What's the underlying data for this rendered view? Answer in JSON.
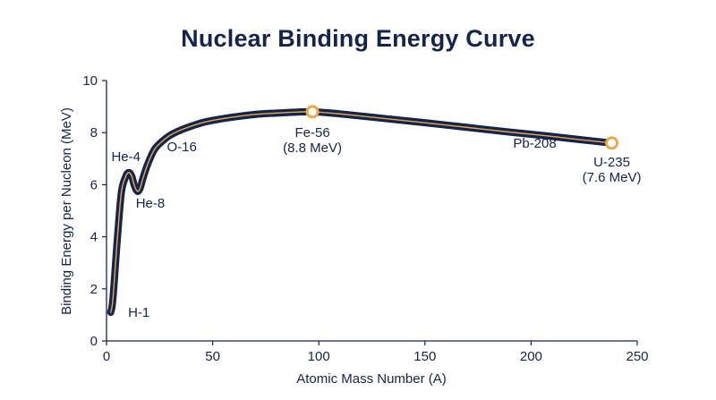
{
  "chart_data": {
    "type": "line",
    "title": "Nuclear Binding Energy Curve",
    "xlabel": "Atomic Mass Number (A)",
    "ylabel": "Binding Energy per Nucleon (MeV)",
    "xlim": [
      0,
      250
    ],
    "ylim": [
      0,
      10
    ],
    "xticks": [
      0,
      50,
      100,
      150,
      200,
      250
    ],
    "yticks": [
      0,
      2,
      4,
      6,
      8,
      10
    ],
    "grid": false,
    "colors": {
      "line": "#14244a",
      "line_highlight": "#e8a84a",
      "marker": "#e8a84a",
      "text": "#14244a"
    },
    "series": [
      {
        "x": [
          2,
          3,
          5,
          7,
          9,
          10,
          11,
          12,
          13,
          14,
          15,
          16,
          17,
          19,
          21,
          23,
          26,
          30,
          35,
          40,
          46,
          52,
          60,
          70,
          80,
          90,
          97,
          110,
          130,
          150,
          170,
          190,
          208,
          222,
          238
        ],
        "y": [
          1.1,
          1.6,
          3.8,
          5.7,
          6.3,
          6.45,
          6.45,
          6.3,
          6.0,
          5.8,
          5.75,
          5.9,
          6.2,
          6.7,
          7.1,
          7.4,
          7.65,
          7.9,
          8.1,
          8.25,
          8.4,
          8.5,
          8.6,
          8.7,
          8.75,
          8.79,
          8.8,
          8.72,
          8.55,
          8.38,
          8.2,
          8.02,
          7.87,
          7.74,
          7.6
        ]
      }
    ],
    "annotations": [
      {
        "label": "H-1",
        "x": 3,
        "y": 1.1
      },
      {
        "label": "He-4",
        "x": 10,
        "y": 6.5
      },
      {
        "label": "He-8",
        "x": 16,
        "y": 5.8
      },
      {
        "label": "O-16",
        "x": 38,
        "y": 7.8
      },
      {
        "label": "Fe-56",
        "sublabel": "(8.8 MeV)",
        "x": 97,
        "y": 8.8
      },
      {
        "label": "Pb-208",
        "x": 203,
        "y": 7.8
      },
      {
        "label": "U-235",
        "sublabel": "(7.6 MeV)",
        "x": 238,
        "y": 7.6
      }
    ],
    "highlighted_points": [
      {
        "x": 97,
        "y": 8.8
      },
      {
        "x": 238,
        "y": 7.6
      }
    ]
  }
}
